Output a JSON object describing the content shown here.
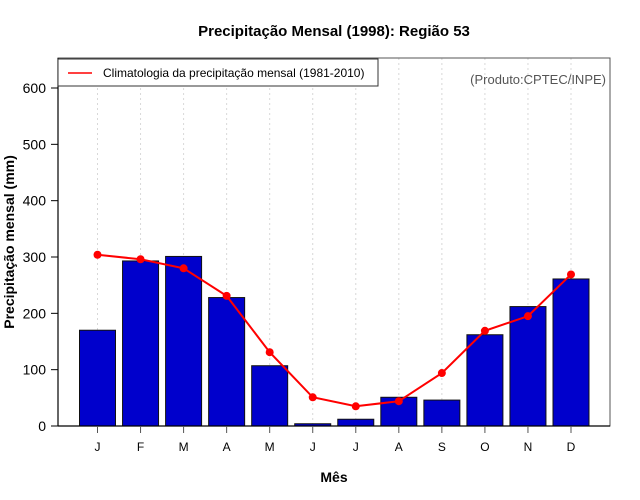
{
  "chart_data": {
    "type": "bar",
    "title": "Precipitação Mensal (1998): Região 53",
    "xlabel": "Mês",
    "ylabel": "Precipitação mensal (mm)",
    "categories": [
      "J",
      "F",
      "M",
      "A",
      "M",
      "J",
      "J",
      "A",
      "S",
      "O",
      "N",
      "D"
    ],
    "ylim": [
      0,
      650
    ],
    "yticks": [
      0,
      100,
      200,
      300,
      400,
      500,
      600
    ],
    "grid": "vertical dotted",
    "series": [
      {
        "name": "Precipitação mensal (1998)",
        "type": "bar",
        "color": "#0000cc",
        "values": [
          170,
          293,
          301,
          228,
          107,
          4,
          12,
          51,
          46,
          162,
          212,
          261
        ]
      },
      {
        "name": "Climatologia da precipitação mensal (1981-2010)",
        "type": "line",
        "color": "#ff0000",
        "values": [
          304,
          296,
          280,
          231,
          131,
          51,
          35,
          44,
          94,
          169,
          195,
          269
        ]
      }
    ],
    "legend": {
      "placement": "top-left",
      "entries": [
        "Climatologia da precipitação mensal (1981-2010)"
      ]
    },
    "annotation": "(Produto:CPTEC/INPE)"
  }
}
